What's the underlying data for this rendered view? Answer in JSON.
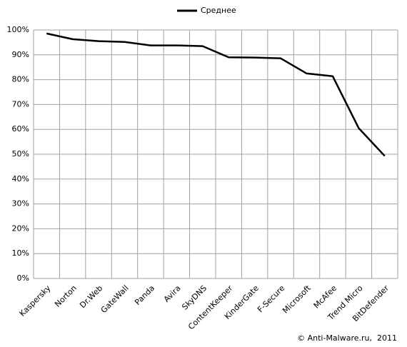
{
  "chart_data": {
    "type": "line",
    "categories": [
      "Kaspersky",
      "Norton",
      "Dr.Web",
      "GateWall",
      "Panda",
      "Avira",
      "SkyDNS",
      "ContentKeeper",
      "KinderGate",
      "F-Secure",
      "Microsoft",
      "McAfee",
      "Trend Micro",
      "BitDefender"
    ],
    "series": [
      {
        "name": "Среднее",
        "color": "#000000",
        "values": [
          98.6,
          96.3,
          95.5,
          95.2,
          93.8,
          93.8,
          93.5,
          89.0,
          88.9,
          88.6,
          82.5,
          81.4,
          60.5,
          49.3
        ]
      }
    ],
    "ylim": [
      0,
      100
    ],
    "yticks": [
      {
        "value": 0,
        "label": "0%"
      },
      {
        "value": 10,
        "label": "10%"
      },
      {
        "value": 20,
        "label": "20%"
      },
      {
        "value": 30,
        "label": "30%"
      },
      {
        "value": 40,
        "label": "40%"
      },
      {
        "value": 50,
        "label": "50%"
      },
      {
        "value": 60,
        "label": "60%"
      },
      {
        "value": 70,
        "label": "70%"
      },
      {
        "value": 80,
        "label": "80%"
      },
      {
        "value": 90,
        "label": "90%"
      },
      {
        "value": 100,
        "label": "100%"
      }
    ],
    "grid": true,
    "legend": "top",
    "source": "© Anti-Malware.ru,  2011"
  }
}
